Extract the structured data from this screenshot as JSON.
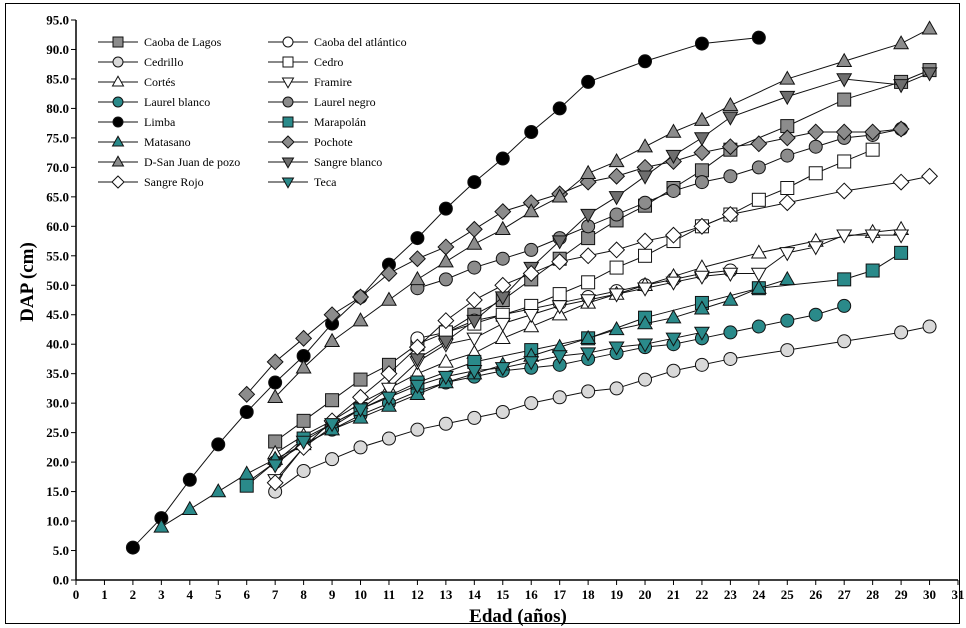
{
  "chart_data": {
    "type": "line",
    "xlabel": "Edad (años)",
    "ylabel": "DAP (cm)",
    "xlim": [
      0,
      31
    ],
    "ylim": [
      0,
      95
    ],
    "xticks": [
      0,
      1,
      2,
      3,
      4,
      5,
      6,
      7,
      8,
      9,
      10,
      11,
      12,
      13,
      14,
      15,
      16,
      17,
      18,
      19,
      20,
      21,
      22,
      23,
      24,
      25,
      26,
      27,
      28,
      29,
      30,
      31
    ],
    "yticks": [
      "0.0",
      "5.0",
      "10.0",
      "15.0",
      "20.0",
      "25.0",
      "30.0",
      "35.0",
      "40.0",
      "45.0",
      "50.0",
      "55.0",
      "60.0",
      "65.0",
      "70.0",
      "75.0",
      "80.0",
      "85.0",
      "90.0",
      "95.0"
    ],
    "grid": false,
    "legend_position": "top-left",
    "series": [
      {
        "name": "Caoba de Lagos",
        "marker": "square",
        "fill": "#8c8c8c",
        "x": [
          7,
          8,
          9,
          10,
          11,
          12,
          13,
          14,
          15,
          16,
          17,
          18,
          19,
          20,
          21,
          22,
          23,
          25,
          27,
          29,
          30
        ],
        "y": [
          23.5,
          27,
          30.5,
          34,
          36.5,
          40,
          42,
          45,
          47.5,
          51,
          54.5,
          58,
          61,
          63.5,
          66.5,
          69.5,
          73,
          77,
          81.5,
          84.5,
          86.5
        ]
      },
      {
        "name": "Caoba del atlántico",
        "marker": "circle",
        "fill": "#ffffff",
        "x": [
          12,
          13,
          14,
          15,
          16,
          17,
          18,
          19,
          20,
          21,
          22,
          23
        ],
        "y": [
          41,
          42,
          44,
          45,
          46,
          47,
          48,
          49,
          50,
          51,
          52,
          52.5
        ]
      },
      {
        "name": "Cedrillo",
        "marker": "circle",
        "fill": "#d9d9d9",
        "x": [
          7,
          8,
          9,
          10,
          11,
          12,
          13,
          14,
          15,
          16,
          17,
          18,
          19,
          20,
          21,
          22,
          23,
          25,
          27,
          29,
          30
        ],
        "y": [
          15,
          18.5,
          20.5,
          22.5,
          24,
          25.5,
          26.5,
          27.5,
          28.5,
          30,
          31,
          32,
          32.5,
          34,
          35.5,
          36.5,
          37.5,
          39,
          40.5,
          42,
          43
        ]
      },
      {
        "name": "Cedro",
        "marker": "square",
        "fill": "#ffffff",
        "x": [
          13,
          14,
          15,
          16,
          17,
          18,
          19,
          20,
          21,
          22,
          23,
          24,
          25,
          26,
          27,
          28
        ],
        "y": [
          42,
          43.5,
          45,
          46.5,
          48.5,
          50.5,
          53,
          55,
          57.5,
          60,
          62,
          64.5,
          66.5,
          69,
          71,
          73
        ]
      },
      {
        "name": "Cortés",
        "marker": "triangle-up",
        "fill": "#ffffff",
        "x": [
          7,
          8,
          9,
          10,
          11,
          12,
          13,
          14,
          15,
          16,
          17,
          18,
          19,
          20,
          21,
          22,
          24,
          26,
          28,
          29
        ],
        "y": [
          21.5,
          24.5,
          27,
          30,
          32.5,
          35,
          37,
          38.5,
          41,
          43,
          45,
          47,
          48.5,
          50,
          51.5,
          53,
          55.5,
          57.5,
          59,
          59.5
        ]
      },
      {
        "name": "Framire",
        "marker": "triangle-down",
        "fill": "#ffffff",
        "x": [
          7,
          8,
          9,
          10,
          11,
          12,
          13,
          14,
          15,
          16,
          17,
          18,
          19,
          20,
          21,
          22,
          23,
          24,
          25,
          26,
          27,
          28,
          29
        ],
        "y": [
          17,
          22.5,
          26,
          29,
          32.5,
          37,
          40,
          41,
          43.5,
          45,
          46.5,
          47.5,
          48.5,
          49.5,
          50.5,
          51.5,
          52,
          52,
          55.5,
          56.5,
          58.5,
          58.5,
          58.5
        ]
      },
      {
        "name": "Laurel blanco",
        "marker": "circle",
        "fill": "#2a8a8a",
        "x": [
          6,
          7,
          8,
          9,
          10,
          11,
          12,
          13,
          14,
          15,
          16,
          17,
          18,
          19,
          20,
          21,
          22,
          23,
          24,
          25,
          26,
          27
        ],
        "y": [
          16.5,
          20,
          23,
          25.5,
          28,
          30,
          32,
          33.5,
          34.5,
          35.5,
          36,
          36.5,
          37.5,
          38.5,
          39.5,
          40,
          41,
          42,
          43,
          44,
          45,
          46.5
        ]
      },
      {
        "name": "Laurel negro",
        "marker": "circle",
        "fill": "#8c8c8c",
        "x": [
          12,
          13,
          14,
          15,
          16,
          17,
          18,
          19,
          20,
          21,
          22,
          23,
          24,
          25,
          26,
          27,
          28,
          29
        ],
        "y": [
          49.5,
          51,
          53,
          54.5,
          56,
          58,
          60,
          62,
          64,
          66,
          67.5,
          68.5,
          70,
          72,
          73.5,
          75,
          75.5,
          76.5
        ]
      },
      {
        "name": "Limba",
        "marker": "circle",
        "fill": "#000000",
        "x": [
          2,
          3,
          4,
          5,
          6,
          7,
          8,
          9,
          10,
          11,
          12,
          13,
          14,
          15,
          16,
          17,
          18,
          20,
          22,
          24
        ],
        "y": [
          5.5,
          10.5,
          17,
          23,
          28.5,
          33.5,
          38,
          43.5,
          48,
          53.5,
          58,
          63,
          67.5,
          71.5,
          76,
          80,
          84.5,
          88,
          91,
          92
        ]
      },
      {
        "name": "Marapolán",
        "marker": "square",
        "fill": "#2a8a8a",
        "x": [
          6,
          8,
          10,
          12,
          14,
          16,
          18,
          20,
          22,
          24,
          27,
          28,
          29
        ],
        "y": [
          16,
          24,
          29,
          33.5,
          37,
          39,
          41,
          44.5,
          47,
          49.5,
          51,
          52.5,
          55.5
        ]
      },
      {
        "name": "Matasano",
        "marker": "triangle-up",
        "fill": "#2a8a8a",
        "x": [
          3,
          4,
          5,
          6,
          7,
          8,
          9,
          10,
          11,
          12,
          13,
          14,
          15,
          16,
          17,
          18,
          19,
          20,
          21,
          22,
          23,
          24,
          25
        ],
        "y": [
          9,
          12,
          15,
          18,
          20.5,
          23,
          25.5,
          27.5,
          29.5,
          31.5,
          33.5,
          35,
          36.5,
          38,
          39.5,
          41,
          42.5,
          43.5,
          44.5,
          46,
          47.5,
          49.5,
          51
        ]
      },
      {
        "name": "Pochote",
        "marker": "diamond",
        "fill": "#8c8c8c",
        "x": [
          6,
          7,
          8,
          9,
          10,
          11,
          12,
          13,
          14,
          15,
          16,
          17,
          18,
          19,
          20,
          21,
          22,
          23,
          24,
          25,
          26,
          27,
          28,
          29
        ],
        "y": [
          31.5,
          37,
          41,
          45,
          48,
          52,
          54.5,
          56.5,
          59.5,
          62.5,
          64,
          65.5,
          67.5,
          68.5,
          70,
          71,
          72.5,
          73.5,
          74,
          75,
          76,
          76,
          76,
          76.5
        ]
      },
      {
        "name": "D-San Juan de pozo",
        "marker": "triangle-up",
        "fill": "#8c8c8c",
        "x": [
          7,
          8,
          9,
          10,
          11,
          12,
          13,
          14,
          15,
          16,
          17,
          18,
          19,
          20,
          21,
          22,
          23,
          25,
          27,
          29,
          30
        ],
        "y": [
          31,
          36,
          40.5,
          44,
          47.5,
          51,
          54,
          57,
          59.5,
          62.5,
          65,
          69,
          71,
          73.5,
          76,
          78,
          80.5,
          85,
          88,
          91,
          93.5
        ]
      },
      {
        "name": "Sangre blanco",
        "marker": "triangle-down",
        "fill": "#6e6e6e",
        "x": [
          12,
          13,
          14,
          15,
          16,
          17,
          18,
          19,
          20,
          21,
          22,
          23,
          25,
          27,
          29,
          30
        ],
        "y": [
          37.5,
          40.5,
          44,
          48,
          53,
          57.5,
          62,
          65,
          68.5,
          72,
          75,
          78.5,
          82,
          85,
          84,
          86
        ]
      },
      {
        "name": "Sangre Rojo",
        "marker": "diamond",
        "fill": "#ffffff",
        "x": [
          7,
          8,
          9,
          10,
          11,
          12,
          13,
          14,
          15,
          16,
          17,
          18,
          19,
          20,
          21,
          22,
          23,
          25,
          27,
          29,
          30
        ],
        "y": [
          16.5,
          22.5,
          27,
          31,
          35,
          39.5,
          44,
          47.5,
          50,
          52,
          54,
          55,
          56,
          57.5,
          58.5,
          60,
          62,
          64,
          66,
          67.5,
          68.5
        ]
      },
      {
        "name": "Teca",
        "marker": "triangle-down",
        "fill": "#2a8a8a",
        "x": [
          7,
          8,
          9,
          10,
          11,
          12,
          13,
          14,
          15,
          16,
          17,
          18,
          19,
          20,
          21,
          22
        ],
        "y": [
          19.5,
          23.5,
          26.5,
          29,
          31,
          33,
          34.5,
          35.5,
          36,
          37,
          38,
          38.5,
          39.5,
          40,
          41,
          42
        ]
      }
    ]
  }
}
